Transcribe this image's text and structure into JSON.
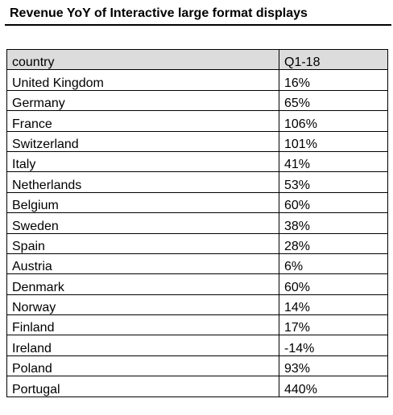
{
  "chart_data": {
    "type": "table",
    "title": "Revenue YoY of Interactive large format displays",
    "columns": [
      "country",
      "Q1-18"
    ],
    "rows": [
      {
        "country": "United Kingdom",
        "value": "16%"
      },
      {
        "country": "Germany",
        "value": "65%"
      },
      {
        "country": "France",
        "value": "106%"
      },
      {
        "country": "Switzerland",
        "value": "101%"
      },
      {
        "country": "Italy",
        "value": "41%"
      },
      {
        "country": "Netherlands",
        "value": "53%"
      },
      {
        "country": "Belgium",
        "value": "60%"
      },
      {
        "country": "Sweden",
        "value": "38%"
      },
      {
        "country": "Spain",
        "value": "28%"
      },
      {
        "country": "Austria",
        "value": "6%"
      },
      {
        "country": "Denmark",
        "value": "60%"
      },
      {
        "country": "Norway",
        "value": "14%"
      },
      {
        "country": "Finland",
        "value": "17%"
      },
      {
        "country": "Ireland",
        "value": "-14%"
      },
      {
        "country": "Poland",
        "value": "93%"
      },
      {
        "country": "Portugal",
        "value": "440%"
      }
    ]
  },
  "colors": {
    "header_fill": "#dcdcdc",
    "border": "#000000"
  }
}
